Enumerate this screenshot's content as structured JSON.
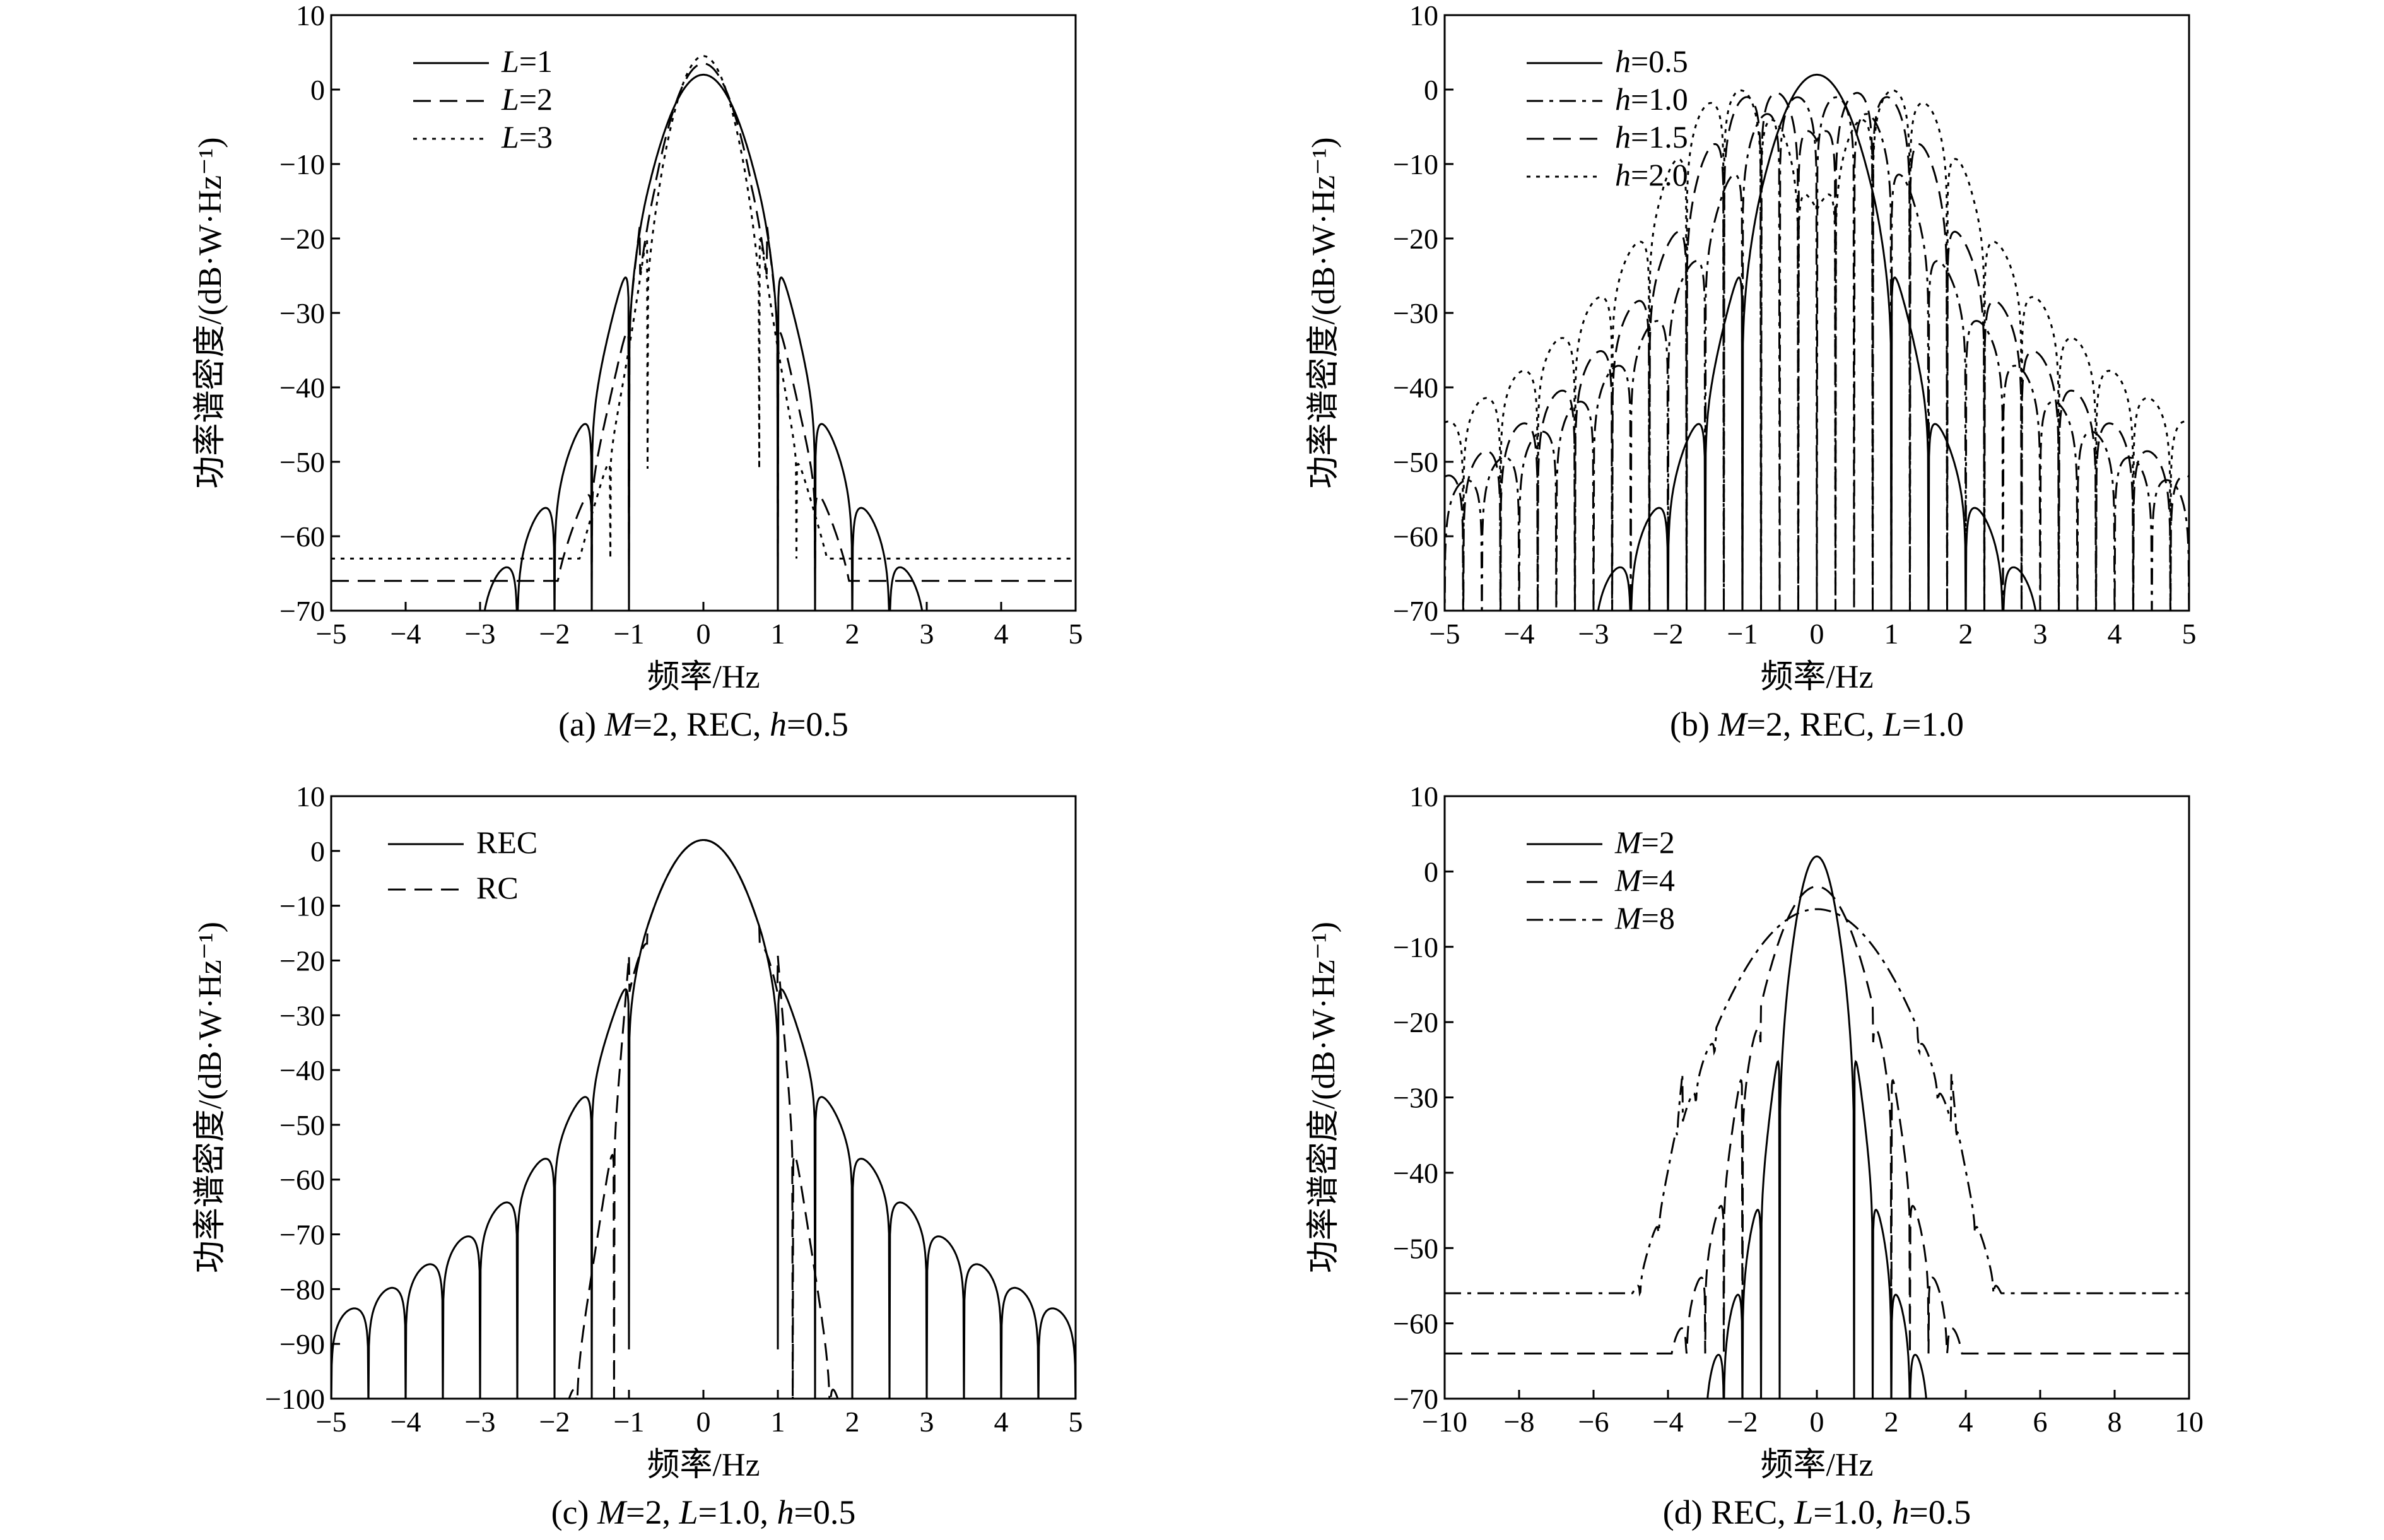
{
  "chart_data": [
    {
      "type": "line",
      "caption": "(a) M=2, REC, h=0.5",
      "caption_parts": [
        [
          "(a) ",
          false
        ],
        [
          "M",
          true
        ],
        [
          "=2, REC, ",
          false
        ],
        [
          "h",
          true
        ],
        [
          "=0.5",
          false
        ]
      ],
      "xlabel": "频率/Hz",
      "ylabel": "功率谱密度/(dB·W·Hz⁻¹)",
      "xlim": [
        -5,
        5
      ],
      "ylim": [
        -70,
        10
      ],
      "xticks": [
        -5,
        -4,
        -3,
        -2,
        -1,
        0,
        1,
        2,
        3,
        4,
        5
      ],
      "yticks": [
        10,
        0,
        -10,
        -20,
        -30,
        -40,
        -50,
        -60,
        -70
      ],
      "legend_position": "top-left",
      "series": [
        {
          "name": "L=1",
          "var": "L",
          "val": "=1",
          "style": "solid",
          "model": {
            "w": 1.0,
            "peak": 2,
            "decay": 6.7,
            "floor": -72,
            "offset": 0,
            "sharp": 1,
            "minfloor": -72
          }
        },
        {
          "name": "L=2",
          "var": "L",
          "val": "=2",
          "style": "dash",
          "model": {
            "w": 0.85,
            "peak": 3.5,
            "decay": 8.7,
            "floor": -72,
            "offset": 0.5,
            "sharp": 0.55,
            "minfloor": -66
          }
        },
        {
          "name": "L=3",
          "var": "L",
          "val": "=3",
          "style": "dot",
          "model": {
            "w": 0.75,
            "peak": 4.5,
            "decay": 9.6,
            "floor": -72,
            "offset": 0.25,
            "sharp": 0.35,
            "minfloor": -63
          }
        }
      ]
    },
    {
      "type": "line",
      "caption": "(b) M=2, REC, L=1.0",
      "caption_parts": [
        [
          "(b) ",
          false
        ],
        [
          "M",
          true
        ],
        [
          "=2, REC, ",
          false
        ],
        [
          "L",
          true
        ],
        [
          "=1.0",
          false
        ]
      ],
      "xlabel": "频率/Hz",
      "ylabel": "功率谱密度/(dB·W·Hz⁻¹)",
      "xlim": [
        -5,
        5
      ],
      "ylim": [
        -70,
        10
      ],
      "xticks": [
        -5,
        -4,
        -3,
        -2,
        -1,
        0,
        1,
        2,
        3,
        4,
        5
      ],
      "yticks": [
        10,
        0,
        -10,
        -20,
        -30,
        -40,
        -50,
        -60,
        -70
      ],
      "legend_position": "top-left",
      "series": [
        {
          "name": "h=0.5",
          "var": "h",
          "val": "=0.5",
          "style": "solid",
          "model": {
            "w": 1.0,
            "peak": 2,
            "decay": 6.7,
            "floor": -72,
            "offset": 0,
            "sharp": 1,
            "minfloor": -72
          }
        },
        {
          "name": "h=1.0",
          "var": "h",
          "val": "=1.0",
          "style": "dashdot",
          "model": {
            "w": 1.0,
            "peak": -1,
            "decay": 5.8,
            "floor": -72,
            "offset": 0.5,
            "sharp": 1,
            "minfloor": -72,
            "twin": 0.3
          }
        },
        {
          "name": "h=1.5",
          "var": "h",
          "val": "=1.5",
          "style": "dash",
          "model": {
            "w": 1.0,
            "peak": 0,
            "decay": 6.0,
            "floor": -72,
            "offset": 0.25,
            "sharp": 1,
            "minfloor": -72,
            "twin": 0.7
          }
        },
        {
          "name": "h=2.0",
          "var": "h",
          "val": "=2.0",
          "style": "dot",
          "model": {
            "w": 1.0,
            "peak": 0,
            "decay": 5.2,
            "floor": -72,
            "offset": 0.75,
            "sharp": 1,
            "minfloor": -72,
            "twin": 1.1
          }
        }
      ]
    },
    {
      "type": "line",
      "caption": "(c) M=2, L=1.0, h=0.5",
      "caption_parts": [
        [
          "(c) ",
          false
        ],
        [
          "M",
          true
        ],
        [
          "=2, ",
          false
        ],
        [
          "L",
          true
        ],
        [
          "=1.0, ",
          false
        ],
        [
          "h",
          true
        ],
        [
          "=0.5",
          false
        ]
      ],
      "xlabel": "频率/Hz",
      "ylabel": "功率谱密度/(dB·W·Hz⁻¹)",
      "xlim": [
        -5,
        5
      ],
      "ylim": [
        -100,
        10
      ],
      "xticks": [
        -5,
        -4,
        -3,
        -2,
        -1,
        0,
        1,
        2,
        3,
        4,
        5
      ],
      "yticks": [
        10,
        0,
        -10,
        -20,
        -30,
        -40,
        -50,
        -60,
        -70,
        -80,
        -90,
        -100
      ],
      "legend_position": "top-left",
      "series": [
        {
          "name": "REC",
          "var": "",
          "val": "REC",
          "style": "solid",
          "model": {
            "w": 1.0,
            "peak": 2,
            "decay": 6.7,
            "floor": -102,
            "offset": 0,
            "sharp": 1,
            "minfloor": -102
          }
        },
        {
          "name": "RC",
          "var": "",
          "val": "RC",
          "style": "dash",
          "model": {
            "w": 1.0,
            "peak": 2,
            "decay": 18,
            "floor": -102,
            "offset": 0.3,
            "sharp": 1,
            "minfloor": -102
          }
        }
      ]
    },
    {
      "type": "line",
      "caption": "(d) REC, L=1.0, h=0.5",
      "caption_parts": [
        [
          "(d) REC, ",
          false
        ],
        [
          "L",
          true
        ],
        [
          "=1.0, ",
          false
        ],
        [
          "h",
          true
        ],
        [
          "=0.5",
          false
        ]
      ],
      "xlabel": "频率/Hz",
      "ylabel": "功率谱密度/(dB·W·Hz⁻¹)",
      "xlim": [
        -10,
        10
      ],
      "ylim": [
        -70,
        10
      ],
      "xticks": [
        -10,
        -8,
        -6,
        -4,
        -2,
        0,
        2,
        4,
        6,
        8,
        10
      ],
      "yticks": [
        10,
        0,
        -10,
        -20,
        -30,
        -40,
        -50,
        -60,
        -70
      ],
      "legend_position": "top-left",
      "series": [
        {
          "name": "M=2",
          "var": "M",
          "val": "=2",
          "style": "solid",
          "model": {
            "w": 1.0,
            "peak": 2,
            "decay": 6.7,
            "floor": -72,
            "offset": 0,
            "sharp": 1,
            "minfloor": -72
          }
        },
        {
          "name": "M=4",
          "var": "M",
          "val": "=4",
          "style": "dash",
          "model": {
            "w": 2.0,
            "peak": -2,
            "decay": 5.6,
            "floor": -72,
            "offset": 0.5,
            "sharp": 0.7,
            "minfloor": -64
          }
        },
        {
          "name": "M=8",
          "var": "M",
          "val": "=8",
          "style": "dashdot",
          "model": {
            "w": 3.6,
            "peak": -5,
            "decay": 5.0,
            "floor": -72,
            "offset": 0.25,
            "sharp": 0.3,
            "minfloor": -56
          }
        }
      ]
    }
  ]
}
